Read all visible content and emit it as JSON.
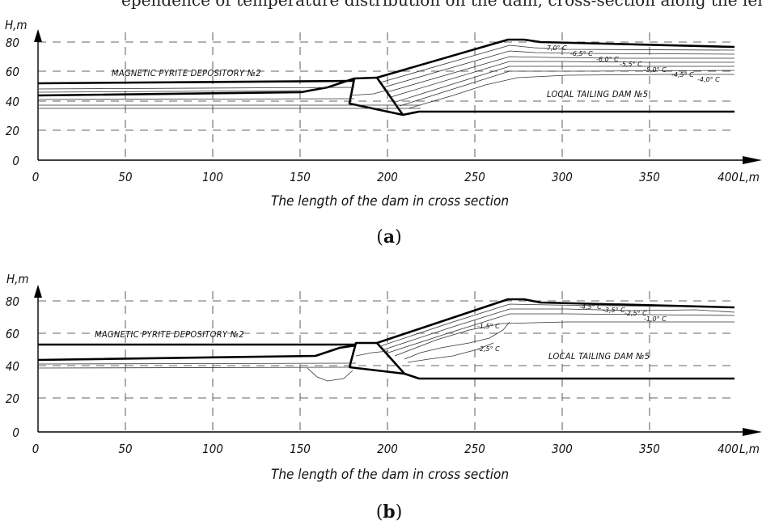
{
  "page_top_text": "ependence of temperature distribution on the dam, cross-section along the length of the dam on the right bank of the magnetic tailing dam",
  "panels": [
    {
      "id": "a",
      "label": "a",
      "x_axis_label": "L,m",
      "y_axis_label": "H,m",
      "x_title": "The length of the dam in cross section",
      "x_ticks": [
        0,
        50,
        100,
        150,
        200,
        250,
        300,
        350,
        400
      ],
      "y_ticks": [
        0,
        20,
        40,
        60,
        80
      ],
      "region_left": "MAGNETIC PYRITE DEPOSITORY №2",
      "region_right": "LOCAL TAILING DAM  №5",
      "isotherms": [
        "-7,0° C",
        "-6,5° C",
        "-6,0° C",
        "-5,5° C",
        "-5,0° C",
        "-4,5° C",
        "-4,0° C"
      ]
    },
    {
      "id": "b",
      "label": "b",
      "x_axis_label": "L,m",
      "y_axis_label": "H,m",
      "x_title": "The length of the dam in cross section",
      "x_ticks": [
        0,
        50,
        100,
        150,
        200,
        250,
        300,
        350,
        400
      ],
      "y_ticks": [
        0,
        20,
        40,
        60,
        80
      ],
      "region_left": "MAGNETIC PYRITE DEPOSITORY №2",
      "region_right": "LOCAL TAILING DAM  №5",
      "isotherms": [
        "-4,5° C",
        "-3,5° C",
        "-2,5° C",
        "-1,5° C",
        "-1,0° C",
        "-2,5° C"
      ]
    }
  ]
}
